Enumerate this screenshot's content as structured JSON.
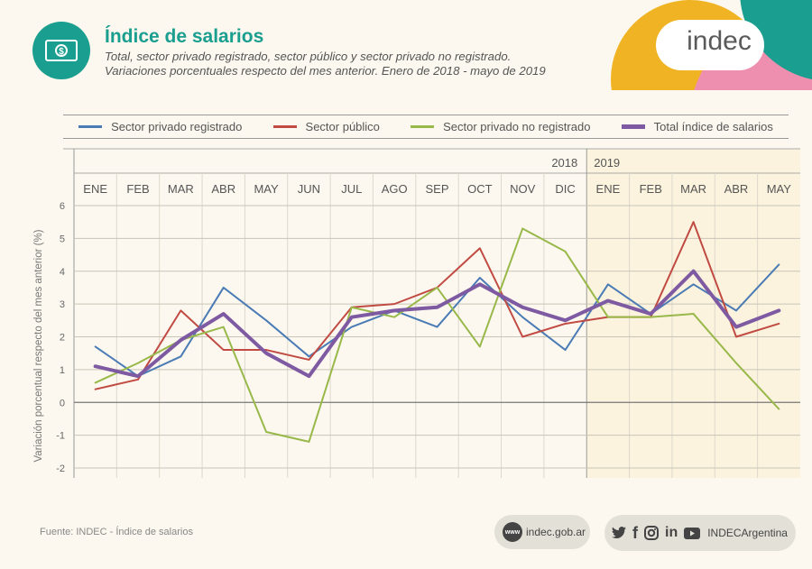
{
  "header": {
    "title": "Índice de salarios",
    "subtitle_line1": "Total, sector privado registrado, sector público y sector privado no registrado.",
    "subtitle_line2": "Variaciones porcentuales respecto del mes anterior. Enero de 2018 - mayo de 2019",
    "icon": "money-icon",
    "logo_text": "indec"
  },
  "colors": {
    "brand_teal": "#1a9e8f",
    "deco_orange": "#f0b323",
    "deco_pink": "#ef8fb0",
    "highlight_2019": "#fbf3dd"
  },
  "chart_data": {
    "type": "line",
    "year_labels": [
      "2018",
      "2019"
    ],
    "categories": [
      "ENE",
      "FEB",
      "MAR",
      "ABR",
      "MAY",
      "JUN",
      "JUL",
      "AGO",
      "SEP",
      "OCT",
      "NOV",
      "DIC",
      "ENE",
      "FEB",
      "MAR",
      "ABR",
      "MAY"
    ],
    "ylabel": "Variación porcentual respecto del mes anterior (%)",
    "ylim": [
      -2,
      6
    ],
    "yticks": [
      "-2",
      "-1",
      "0",
      "1",
      "2",
      "3",
      "4",
      "5",
      "6"
    ],
    "grid": true,
    "legend_position": "top",
    "series": [
      {
        "name": "Sector privado registrado",
        "color": "#4a7bb5",
        "width": 2,
        "values": [
          1.7,
          0.8,
          1.4,
          3.5,
          2.5,
          1.4,
          2.3,
          2.8,
          2.3,
          3.8,
          2.6,
          1.6,
          3.6,
          2.7,
          3.6,
          2.8,
          4.2
        ]
      },
      {
        "name": "Sector público",
        "color": "#c14b43",
        "width": 2,
        "values": [
          0.4,
          0.7,
          2.8,
          1.6,
          1.6,
          1.3,
          2.9,
          3.0,
          3.5,
          4.7,
          2.0,
          2.4,
          2.6,
          2.6,
          5.5,
          2.0,
          2.4
        ]
      },
      {
        "name": "Sector privado no registrado",
        "color": "#98b84a",
        "width": 2,
        "values": [
          0.6,
          1.2,
          1.9,
          2.3,
          -0.9,
          -1.2,
          2.9,
          2.6,
          3.5,
          1.7,
          5.3,
          4.6,
          2.6,
          2.6,
          2.7,
          1.2,
          -0.2
        ]
      },
      {
        "name": "Total índice de salarios",
        "color": "#7e5aa2",
        "width": 4,
        "values": [
          1.1,
          0.8,
          1.9,
          2.7,
          1.5,
          0.8,
          2.6,
          2.8,
          2.9,
          3.6,
          2.9,
          2.5,
          3.1,
          2.7,
          4.0,
          2.3,
          2.8
        ]
      }
    ]
  },
  "footer": {
    "source": "Fuente: INDEC - Índice de salarios",
    "web_badge": "www",
    "website": "indec.gob.ar",
    "social_handle": "INDECArgentina",
    "social_icons": [
      "twitter-icon",
      "facebook-icon",
      "instagram-icon",
      "linkedin-icon",
      "youtube-icon"
    ]
  }
}
